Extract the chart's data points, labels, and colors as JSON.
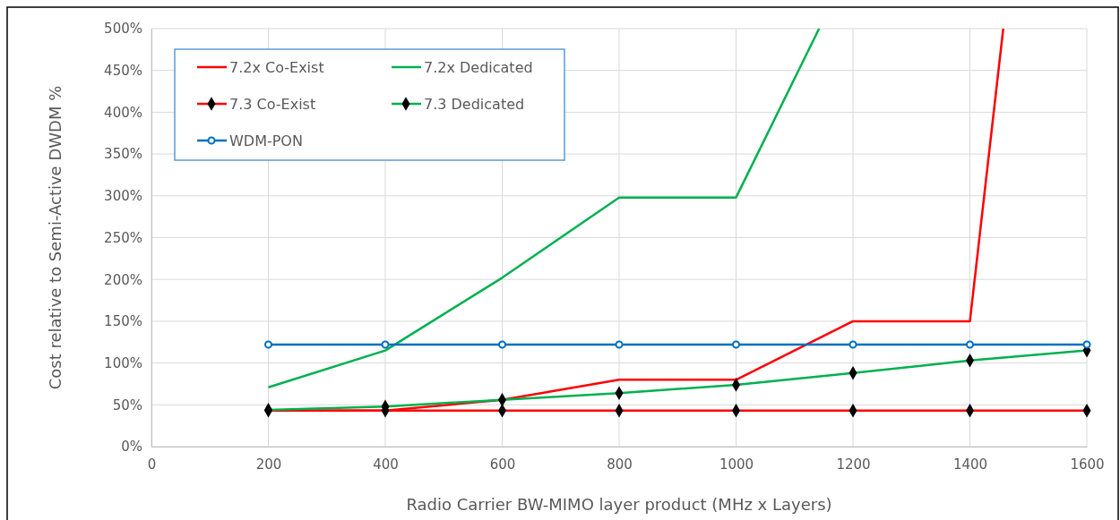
{
  "chart_data": {
    "type": "line",
    "xlabel": "Radio Carrier BW-MIMO layer product (MHz x Layers)",
    "ylabel": "Cost relative to Semi-Active DWDM %",
    "x": [
      200,
      400,
      600,
      800,
      1000,
      1200,
      1400,
      1600
    ],
    "series": [
      {
        "name": "7.2x Co-Exist",
        "color": "#ff0000",
        "marker": "none",
        "x": [
          200,
          400,
          600,
          800,
          1000,
          1200,
          1400,
          1457
        ],
        "values": [
          43,
          43,
          56,
          80,
          80,
          150,
          150,
          500
        ]
      },
      {
        "name": "7.2x Dedicated",
        "color": "#00b050",
        "marker": "none",
        "x": [
          200,
          400,
          600,
          800,
          1000,
          1142
        ],
        "values": [
          71,
          115,
          202,
          298,
          298,
          500
        ]
      },
      {
        "name": "7.3 Co-Exist",
        "color": "#ff0000",
        "marker": "diamond",
        "values": [
          43,
          43,
          43,
          43,
          43,
          43,
          43,
          43
        ]
      },
      {
        "name": "7.3 Dedicated",
        "color": "#00b050",
        "marker": "diamond",
        "values": [
          44,
          48,
          56,
          64,
          74,
          88,
          103,
          115
        ]
      },
      {
        "name": "WDM-PON",
        "color": "#0070c0",
        "marker": "circle",
        "values": [
          122,
          122,
          122,
          122,
          122,
          122,
          122,
          122
        ]
      }
    ],
    "xlim": [
      0,
      1600
    ],
    "xticks": [
      0,
      200,
      400,
      600,
      800,
      1000,
      1200,
      1400,
      1600
    ],
    "ylim": [
      0,
      500
    ],
    "yticks": [
      {
        "value": 0,
        "label": "0%"
      },
      {
        "value": 50,
        "label": "50%"
      },
      {
        "value": 100,
        "label": "100%"
      },
      {
        "value": 150,
        "label": "150%"
      },
      {
        "value": 200,
        "label": "200%"
      },
      {
        "value": 250,
        "label": "250%"
      },
      {
        "value": 300,
        "label": "300%"
      },
      {
        "value": 350,
        "label": "350%"
      },
      {
        "value": 400,
        "label": "400%"
      },
      {
        "value": 450,
        "label": "450%"
      },
      {
        "value": 500,
        "label": "500%"
      }
    ],
    "grid": true,
    "legend": "top left",
    "line_style": "solid"
  }
}
